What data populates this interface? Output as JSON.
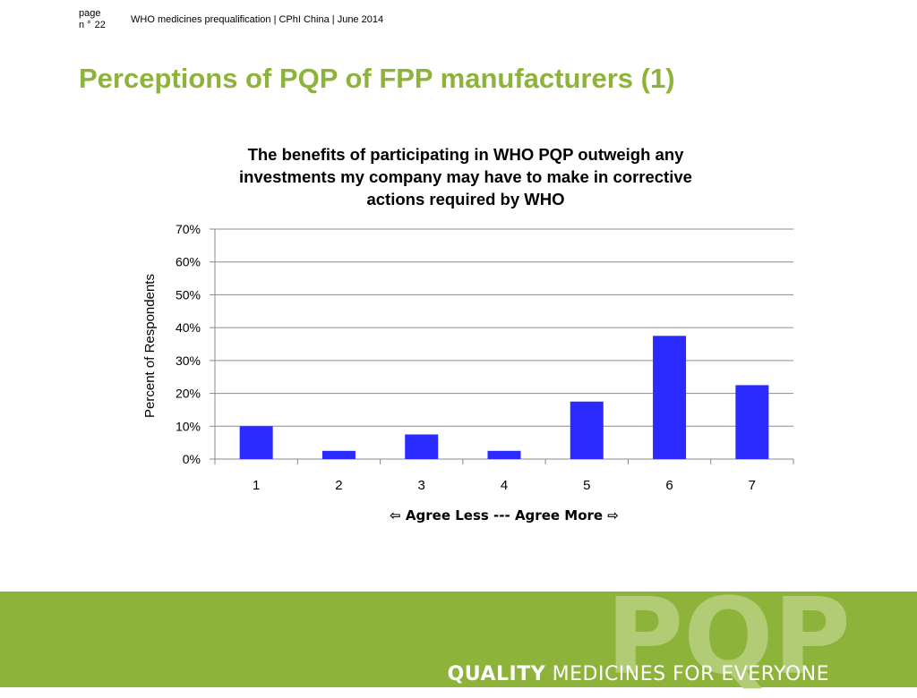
{
  "header": {
    "page_label": "page",
    "page_prefix": "n °",
    "page_number": "22",
    "text": "WHO medicines prequalification | CPhI China | June 2014"
  },
  "slide_title": "Perceptions of PQP of FPP manufacturers (1)",
  "chart_data": {
    "type": "bar",
    "title": "The benefits of participating in WHO PQP outweigh any investments my company may have to make in corrective actions required by WHO",
    "title_lines": [
      "The benefits of participating in WHO PQP outweigh any",
      "investments my company may have to make in corrective",
      "actions required by WHO"
    ],
    "categories": [
      "1",
      "2",
      "3",
      "4",
      "5",
      "6",
      "7"
    ],
    "values": [
      10,
      2.5,
      7.5,
      2.5,
      17.5,
      37.5,
      22.5
    ],
    "xlabel": "⇦ Agree Less --- Agree More ⇨",
    "ylabel": "Percent of Respondents",
    "ylim": [
      0,
      70
    ],
    "yticks": [
      "0%",
      "10%",
      "20%",
      "30%",
      "40%",
      "50%",
      "60%",
      "70%"
    ],
    "grid": true,
    "bar_color": "#2b2bff"
  },
  "footer": {
    "logo": "PQP",
    "tagline_bold": "QUALITY",
    "tagline_rest": " MEDICINES FOR EVERYONE",
    "background_color": "#8db33a"
  }
}
